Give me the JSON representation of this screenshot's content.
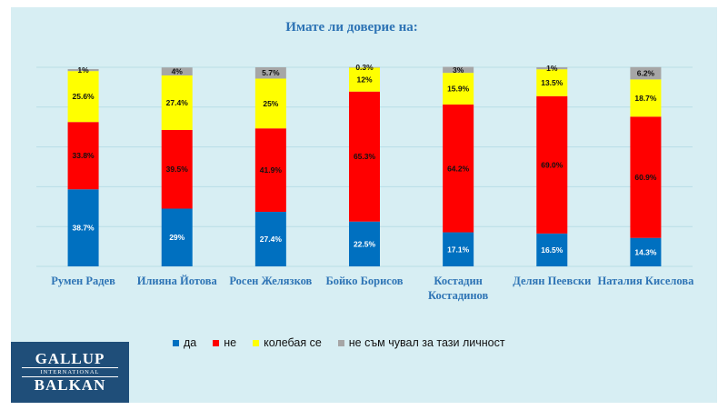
{
  "chart_data": {
    "type": "bar",
    "stacked": true,
    "title": "Имате  ли доверие на:",
    "categories": [
      "Румен Радев",
      "Илияна Йотова",
      "Росен Желязков",
      "Бойко Борисов",
      "Костадин Костадинов",
      "Делян Пеевски",
      "Наталия Киселова"
    ],
    "series": [
      {
        "name": "да",
        "color": "#0070c0",
        "values": [
          38.7,
          29,
          27.4,
          22.5,
          17.1,
          16.5,
          14.3
        ],
        "labels": [
          "38.7%",
          "29%",
          "27.4%",
          "22.5%",
          "17.1%",
          "16.5%",
          "14.3%"
        ]
      },
      {
        "name": "не",
        "color": "#ff0000",
        "values": [
          33.8,
          39.5,
          41.9,
          65.3,
          64.2,
          69.0,
          60.9
        ],
        "labels": [
          "33.8%",
          "39.5%",
          "41.9%",
          "65.3%",
          "64.2%",
          "69.0%",
          "60.9%"
        ]
      },
      {
        "name": "колебая се",
        "color": "#ffff00",
        "values": [
          25.6,
          27.4,
          25,
          12,
          15.9,
          13.5,
          18.7
        ],
        "labels": [
          "25.6%",
          "27.4%",
          "25%",
          "12%",
          "15.9%",
          "13.5%",
          "18.7%"
        ]
      },
      {
        "name": "не съм чувал за тази личност",
        "color": "#a6a6a6",
        "values": [
          1,
          4,
          5.7,
          0.3,
          3,
          1,
          6.2
        ],
        "labels": [
          "1%",
          "4%",
          "5.7%",
          "0.3%",
          "3%",
          "1%",
          "6.2%"
        ]
      }
    ],
    "ylim": [
      0,
      100
    ],
    "grid": true,
    "legend": "bottom",
    "xlabel": "",
    "ylabel": ""
  },
  "logo": {
    "line1": "GALLUP",
    "line2": "INTERNATIONAL",
    "line3": "BALKAN"
  },
  "colors": {
    "background": "#d7eef3",
    "title": "#2e74b5",
    "grid": "#b8dde6"
  }
}
